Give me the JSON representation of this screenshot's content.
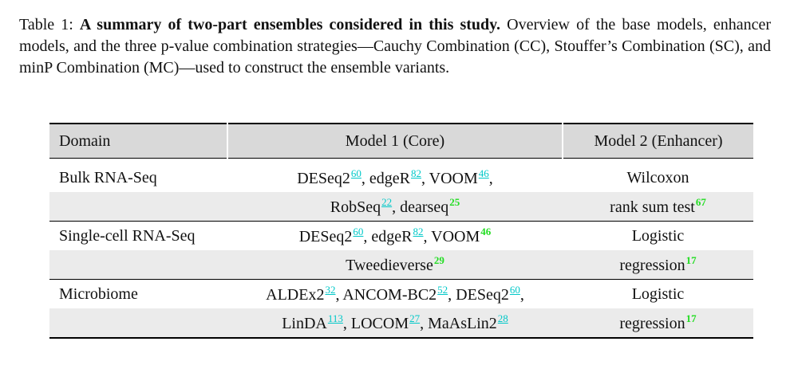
{
  "caption": {
    "label": "Table 1:",
    "title": "A summary of two-part ensembles considered in this study.",
    "text": "Overview of the base models, enhancer models, and the three p-value combination strategies—Cauchy Combination (CC), Stouffer’s Combination (SC), and minP Combination (MC)—used to construct the ensemble variants."
  },
  "table": {
    "header": [
      "Domain",
      "Model 1 (Core)",
      "Model 2 (Enhancer)"
    ],
    "link_color": "#00c8c8",
    "cite_color": "#22dd22",
    "rows": [
      {
        "domain": "Bulk RNA-Seq",
        "model1": [
          "DESeq2",
          {
            "ref": "60",
            "link": true
          },
          ", edgeR",
          {
            "ref": "82",
            "link": true
          },
          ", VOOM",
          {
            "ref": "46",
            "link": true
          },
          ","
        ],
        "model2": [
          "Wilcoxon"
        ]
      },
      {
        "model1": [
          "RobSeq",
          {
            "ref": "22",
            "link": true
          },
          ", dearseq",
          {
            "ref": "25",
            "link": false
          }
        ],
        "model2": [
          "rank sum test",
          {
            "ref": "67",
            "link": false
          }
        ]
      },
      {
        "domain": "Single-cell RNA-Seq",
        "model1": [
          "DESeq2",
          {
            "ref": "60",
            "link": true
          },
          ", edgeR",
          {
            "ref": "82",
            "link": true
          },
          ", VOOM",
          {
            "ref": "46",
            "link": false
          }
        ],
        "model2": [
          "Logistic"
        ]
      },
      {
        "model1": [
          "Tweedieverse",
          {
            "ref": "29",
            "link": false
          }
        ],
        "model2": [
          "regression",
          {
            "ref": "17",
            "link": false
          }
        ]
      },
      {
        "domain": "Microbiome",
        "model1": [
          "ALDEx2",
          {
            "ref": "32",
            "link": true
          },
          ", ANCOM-BC2",
          {
            "ref": "52",
            "link": true
          },
          ", DESeq2",
          {
            "ref": "60",
            "link": true
          },
          ","
        ],
        "model2": [
          "Logistic"
        ]
      },
      {
        "model1": [
          "LinDA",
          {
            "ref": "113",
            "link": true
          },
          ", LOCOM",
          {
            "ref": "27",
            "link": true
          },
          ", MaAsLin2",
          {
            "ref": "28",
            "link": true
          }
        ],
        "model2": [
          "regression",
          {
            "ref": "17",
            "link": false
          }
        ]
      }
    ]
  }
}
